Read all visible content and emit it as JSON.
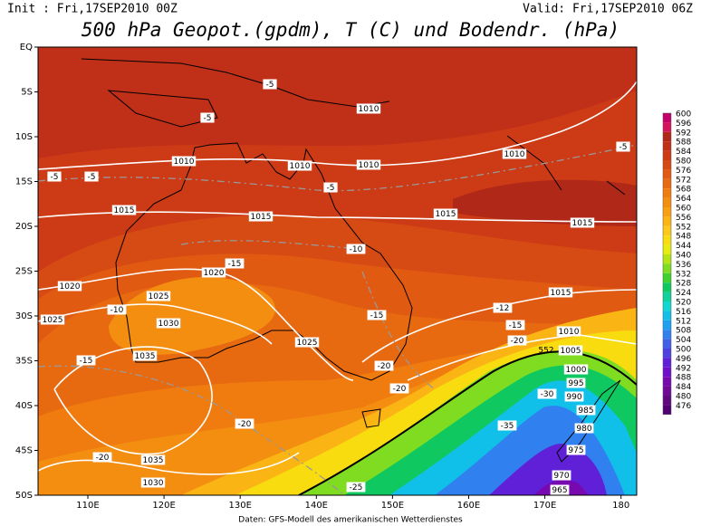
{
  "header": {
    "init": "Init : Fri,17SEP2010 00Z",
    "valid": "Valid: Fri,17SEP2010 06Z",
    "title": "500 hPa Geopot.(gpdm), T (C) und Bodendr. (hPa)"
  },
  "map": {
    "lat_labels": [
      "EQ",
      "5S",
      "10S",
      "15S",
      "20S",
      "25S",
      "30S",
      "35S",
      "40S",
      "45S",
      "50S"
    ],
    "lon_labels": [
      "110E",
      "120E",
      "130E",
      "140E",
      "150E",
      "160E",
      "170E",
      "180"
    ],
    "isobar_labels": [
      "1010",
      "1010",
      "1010",
      "1010",
      "1010",
      "1015",
      "1015",
      "1015",
      "1015",
      "1020",
      "1020",
      "1025",
      "1025",
      "1025",
      "1030",
      "1030",
      "1035",
      "1035",
      "1015",
      "1010",
      "1005",
      "1000",
      "995",
      "990",
      "985",
      "980",
      "975",
      "970",
      "965"
    ],
    "isotherm_labels": [
      "-5",
      "-5",
      "-5",
      "-5",
      "-5",
      "-5",
      "-10",
      "-15",
      "-10",
      "-15",
      "-15",
      "-20",
      "-20",
      "-20",
      "-20",
      "-12",
      "-15",
      "-20",
      "-30",
      "-35",
      "-25"
    ],
    "height_labels": [
      "552"
    ]
  },
  "colorbar": {
    "levels": [
      600,
      596,
      592,
      588,
      584,
      580,
      576,
      572,
      568,
      564,
      560,
      556,
      552,
      548,
      544,
      540,
      536,
      532,
      528,
      524,
      520,
      516,
      512,
      508,
      504,
      500,
      496,
      492,
      488,
      484,
      480,
      476
    ],
    "colors": [
      "#c4006a",
      "#d4145a",
      "#b02818",
      "#c03018",
      "#cc3a16",
      "#d64a14",
      "#e05a12",
      "#e86a10",
      "#f07c10",
      "#f48e10",
      "#f8a010",
      "#fab414",
      "#fcc81a",
      "#f8dc10",
      "#e6ec10",
      "#b4e414",
      "#80dc20",
      "#40d030",
      "#10c860",
      "#10d09c",
      "#10d8d0",
      "#10c0e8",
      "#20a0f0",
      "#3080f0",
      "#4060e8",
      "#5040e0",
      "#6020d8",
      "#7010c8",
      "#7808b0",
      "#700898",
      "#600880",
      "#500070"
    ]
  },
  "footer": "Daten: GFS-Modell des amerikanischen Wetterdienstes"
}
